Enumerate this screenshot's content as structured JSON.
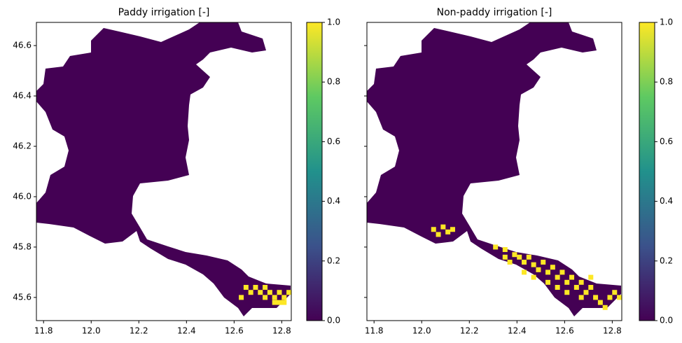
{
  "chart_data": [
    {
      "type": "raster",
      "title": "Paddy irrigation [-]",
      "xlim": [
        11.77,
        12.84
      ],
      "ylim": [
        45.508,
        46.692
      ],
      "xticks": [
        11.8,
        {
          "value": 12.0,
          "label": "12.0"
        },
        12.2,
        12.4,
        12.6,
        12.8
      ],
      "yticks": [
        45.6,
        45.8,
        {
          "value": 46.0,
          "label": "46.0"
        },
        46.2,
        46.4,
        46.6
      ],
      "show_ytick_labels": true,
      "clim": [
        0,
        1
      ],
      "cticks": [
        {
          "value": 0,
          "label": "0.0"
        },
        0.2,
        0.4,
        0.6,
        0.8,
        {
          "value": 1,
          "label": "1.0"
        }
      ],
      "colormap": [
        "#440154",
        "#3b528b",
        "#21918c",
        "#5ec962",
        "#fde725"
      ],
      "background_value": 0,
      "x": [
        12.65,
        12.67,
        12.69,
        12.71,
        12.73,
        12.75,
        12.77,
        12.79,
        12.81,
        12.83,
        12.77,
        12.73,
        12.79,
        12.81,
        12.63
      ],
      "y": [
        45.64,
        45.62,
        45.64,
        45.62,
        45.6,
        45.62,
        45.6,
        45.58,
        45.6,
        45.62,
        45.58,
        45.64,
        45.62,
        45.58,
        45.6
      ],
      "values": [
        1,
        1,
        1,
        1,
        1,
        1,
        1,
        1,
        1,
        1,
        1,
        1,
        1,
        1,
        1
      ]
    },
    {
      "type": "raster",
      "title": "Non-paddy irrigation [-]",
      "xlim": [
        11.77,
        12.84
      ],
      "ylim": [
        45.508,
        46.692
      ],
      "xticks": [
        11.8,
        {
          "value": 12.0,
          "label": "12.0"
        },
        12.2,
        12.4,
        12.6,
        12.8
      ],
      "yticks": [
        45.6,
        45.8,
        46,
        46.2,
        46.4,
        46.6
      ],
      "show_ytick_labels": false,
      "clim": [
        0,
        1
      ],
      "cticks": [
        {
          "value": 0,
          "label": "0.0"
        },
        0.2,
        0.4,
        0.6,
        0.8,
        {
          "value": 1,
          "label": "1.0"
        }
      ],
      "colormap": [
        "#440154",
        "#3b528b",
        "#21918c",
        "#5ec962",
        "#fde725"
      ],
      "background_value": 0,
      "x": [
        12.05,
        12.09,
        12.11,
        12.13,
        12.07,
        12.31,
        12.35,
        12.39,
        12.41,
        12.43,
        12.45,
        12.37,
        12.47,
        12.49,
        12.51,
        12.53,
        12.55,
        12.57,
        12.59,
        12.61,
        12.63,
        12.65,
        12.67,
        12.69,
        12.71,
        12.73,
        12.75,
        12.77,
        12.79,
        12.81,
        12.47,
        12.53,
        12.43,
        12.61,
        12.71,
        12.35,
        12.83,
        12.57,
        12.67
      ],
      "y": [
        45.87,
        45.88,
        45.86,
        45.87,
        45.85,
        45.8,
        45.79,
        45.77,
        45.76,
        45.74,
        45.76,
        45.74,
        45.73,
        45.71,
        45.74,
        45.7,
        45.72,
        45.68,
        45.7,
        45.66,
        45.68,
        45.64,
        45.66,
        45.62,
        45.64,
        45.6,
        45.58,
        45.56,
        45.6,
        45.62,
        45.68,
        45.66,
        45.7,
        45.62,
        45.68,
        45.76,
        45.6,
        45.64,
        45.6
      ],
      "values": [
        1,
        1,
        1,
        1,
        1,
        1,
        1,
        1,
        1,
        1,
        1,
        1,
        1,
        1,
        1,
        1,
        1,
        1,
        1,
        1,
        1,
        1,
        1,
        1,
        1,
        1,
        1,
        1,
        1,
        1,
        1,
        1,
        1,
        1,
        1,
        1,
        1,
        1,
        1
      ]
    }
  ]
}
